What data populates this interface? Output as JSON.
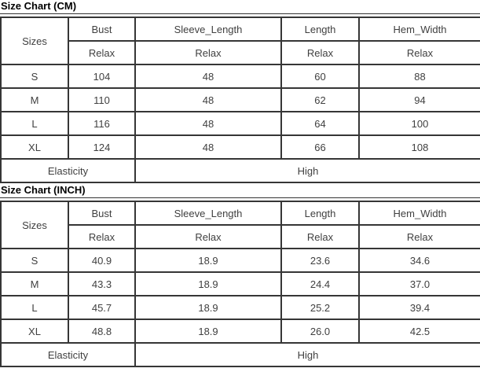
{
  "page": {
    "background": "#ffffff",
    "border_color": "#363636",
    "text_color": "#404040",
    "title_color": "#000000"
  },
  "chart_data": [
    {
      "type": "table",
      "title": "Size Chart (CM)",
      "corner": "Sizes",
      "columns": [
        "Bust",
        "Sleeve_Length",
        "Length",
        "Hem_Width"
      ],
      "measure_row": [
        "Relax",
        "Relax",
        "Relax",
        "Relax"
      ],
      "rows": [
        {
          "size": "S",
          "values": [
            "104",
            "48",
            "60",
            "88"
          ]
        },
        {
          "size": "M",
          "values": [
            "110",
            "48",
            "62",
            "94"
          ]
        },
        {
          "size": "L",
          "values": [
            "116",
            "48",
            "64",
            "100"
          ]
        },
        {
          "size": "XL",
          "values": [
            "124",
            "48",
            "66",
            "108"
          ]
        }
      ],
      "footer_label": "Elasticity",
      "footer_value": "High"
    },
    {
      "type": "table",
      "title": "Size Chart (INCH)",
      "corner": "Sizes",
      "columns": [
        "Bust",
        "Sleeve_Length",
        "Length",
        "Hem_Width"
      ],
      "measure_row": [
        "Relax",
        "Relax",
        "Relax",
        "Relax"
      ],
      "rows": [
        {
          "size": "S",
          "values": [
            "40.9",
            "18.9",
            "23.6",
            "34.6"
          ]
        },
        {
          "size": "M",
          "values": [
            "43.3",
            "18.9",
            "24.4",
            "37.0"
          ]
        },
        {
          "size": "L",
          "values": [
            "45.7",
            "18.9",
            "25.2",
            "39.4"
          ]
        },
        {
          "size": "XL",
          "values": [
            "48.8",
            "18.9",
            "26.0",
            "42.5"
          ]
        }
      ],
      "footer_label": "Elasticity",
      "footer_value": "High"
    }
  ]
}
